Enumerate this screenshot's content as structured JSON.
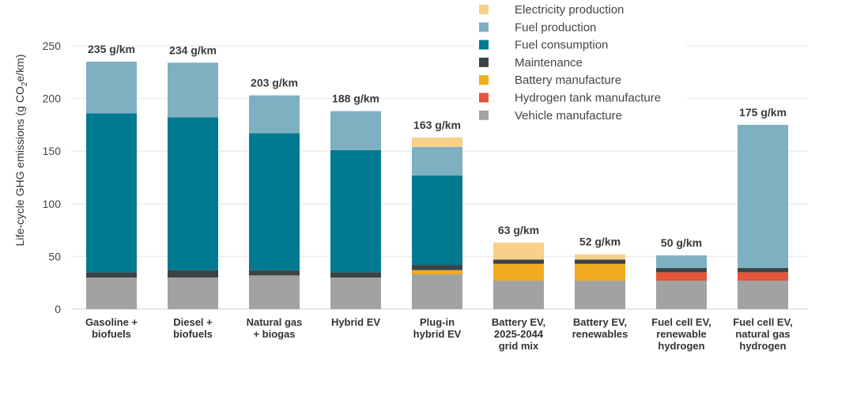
{
  "chart_data": {
    "type": "bar",
    "stacked": true,
    "ylabel_parts": [
      "Life-cycle GHG emissions (g CO",
      "2",
      "e/km)"
    ],
    "ylim": [
      0,
      250
    ],
    "yticks": [
      0,
      50,
      100,
      150,
      200,
      250
    ],
    "grid": true,
    "legend_position": "top-right",
    "categories": [
      [
        "Gasoline +",
        "biofuels"
      ],
      [
        "Diesel +",
        "biofuels"
      ],
      [
        "Natural gas",
        "+ biogas"
      ],
      [
        "Hybrid EV"
      ],
      [
        "Plug-in",
        "hybrid EV"
      ],
      [
        "Battery EV,",
        "2025-2044",
        "grid mix"
      ],
      [
        "Battery EV,",
        "renewables"
      ],
      [
        "Fuel cell EV,",
        "renewable",
        "hydrogen"
      ],
      [
        "Fuel cell EV,",
        "natural gas",
        "hydrogen"
      ]
    ],
    "totals": [
      "235 g/km",
      "234 g/km",
      "203 g/km",
      "188 g/km",
      "163 g/km",
      "63 g/km",
      "52 g/km",
      "50 g/km",
      "175 g/km"
    ],
    "series": [
      {
        "name": "Vehicle manufacture",
        "color": "#a2a2a2",
        "values": [
          30,
          30,
          32,
          30,
          33,
          27,
          27,
          27,
          27
        ]
      },
      {
        "name": "Hydrogen tank manufacture",
        "color": "#e4553a",
        "values": [
          0,
          0,
          0,
          0,
          0,
          0,
          0,
          8,
          8
        ]
      },
      {
        "name": "Battery manufacture",
        "color": "#f1ab1f",
        "values": [
          0,
          0,
          0,
          0,
          4,
          16,
          16,
          0,
          0
        ]
      },
      {
        "name": "Maintenance",
        "color": "#3b4347",
        "values": [
          5,
          7,
          5,
          5,
          5,
          4,
          4,
          4,
          4
        ]
      },
      {
        "name": "Fuel consumption",
        "color": "#007a91",
        "values": [
          151,
          145,
          130,
          116,
          85,
          0,
          0,
          0,
          0
        ]
      },
      {
        "name": "Fuel production",
        "color": "#7eb0c2",
        "values": [
          49,
          52,
          36,
          37,
          27,
          0,
          0,
          12,
          136
        ]
      },
      {
        "name": "Electricity production",
        "color": "#f8d087",
        "values": [
          0,
          0,
          0,
          0,
          9,
          16,
          5,
          0,
          0
        ]
      }
    ],
    "legend_order": [
      "Electricity production",
      "Fuel production",
      "Fuel consumption",
      "Maintenance",
      "Battery manufacture",
      "Hydrogen tank manufacture",
      "Vehicle manufacture"
    ]
  }
}
